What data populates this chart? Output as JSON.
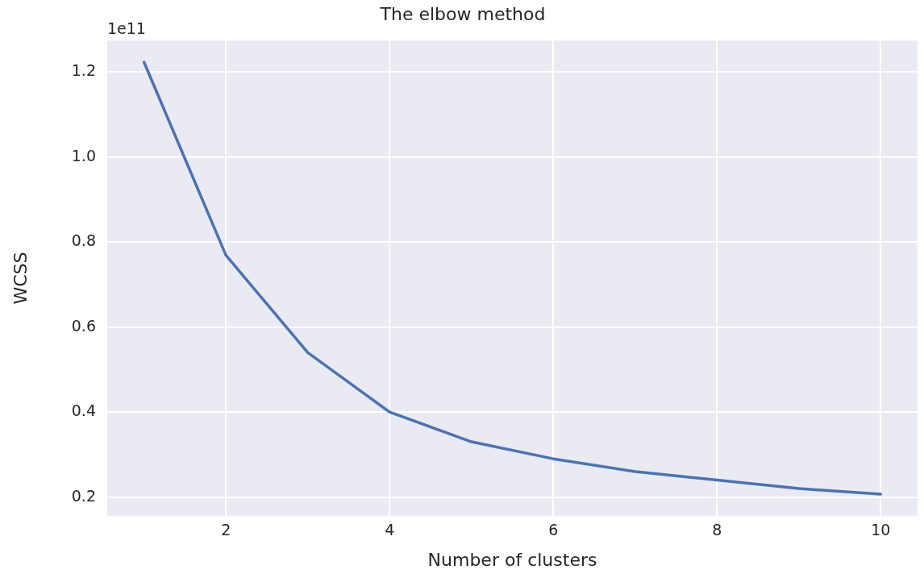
{
  "chart_data": {
    "type": "line",
    "title": "The elbow method",
    "xlabel": "Number of clusters",
    "ylabel": "WCSS",
    "annotations": [
      "1e11"
    ],
    "x": [
      1,
      2,
      3,
      4,
      5,
      6,
      7,
      8,
      9,
      10
    ],
    "series": [
      {
        "color": "#4c72b0",
        "values": [
          1.223,
          0.769,
          0.54,
          0.4,
          0.33,
          0.29,
          0.26,
          0.24,
          0.22,
          0.207
        ]
      }
    ],
    "xlim": [
      0.55,
      10.45
    ],
    "ylim": [
      0.156,
      1.274
    ],
    "xticks": [
      2,
      4,
      6,
      8,
      10
    ],
    "yticks": [
      0.2,
      0.4,
      0.6,
      0.8,
      {
        "value": 1.0,
        "label": "1.0"
      },
      1.2
    ],
    "grid": true,
    "legend": false,
    "marker": "none",
    "line_style": "solid"
  }
}
